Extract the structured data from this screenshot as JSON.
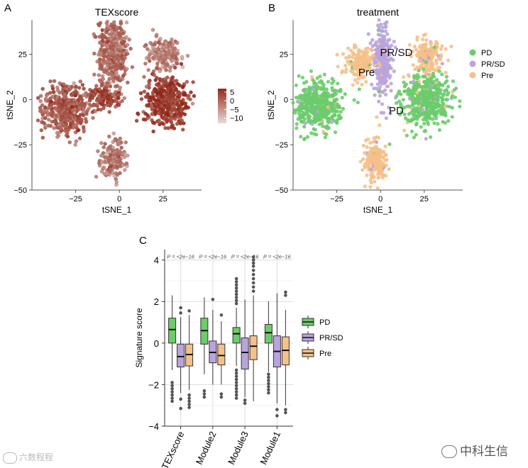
{
  "panel_letters": [
    "A",
    "B",
    "C"
  ],
  "chart_data": [
    {
      "type": "scatter",
      "title": "TEXscore",
      "xlabel": "tSNE_1",
      "ylabel": "tSNE_2",
      "xlim": [
        -50,
        47
      ],
      "ylim": [
        -50,
        44
      ],
      "xticks": [
        -25,
        0,
        25
      ],
      "yticks": [
        -50,
        -25,
        0,
        25
      ],
      "xtick_labels": [
        "−25",
        "0",
        "25"
      ],
      "ytick_labels": [
        "−50",
        "−25",
        "0",
        "25"
      ],
      "color_scale": {
        "min": -13,
        "max": 7,
        "ticks": [
          5,
          0,
          -5,
          -10
        ],
        "tick_labels": [
          "5",
          "0",
          "−5",
          "−10"
        ],
        "low_color": "#e6dcd8",
        "high_color": "#962818"
      },
      "clusters": [
        {
          "name": "upper-center",
          "cx": -4,
          "cy": 25,
          "sx": 5.5,
          "sy": 13,
          "mean_score": -1
        },
        {
          "name": "upper-right",
          "cx": 26,
          "cy": 25,
          "sx": 6,
          "sy": 6,
          "mean_score": -3.5
        },
        {
          "name": "left-arc",
          "cx": -30,
          "cy": -5,
          "sx": 9,
          "sy": 9,
          "mean_score": 1
        },
        {
          "name": "mid-band",
          "cx": -8,
          "cy": 1,
          "sx": 6,
          "sy": 3.5,
          "mean_score": 3
        },
        {
          "name": "right-large",
          "cx": 27,
          "cy": 0,
          "sx": 8.5,
          "sy": 9,
          "mean_score": 4.5
        },
        {
          "name": "bottom",
          "cx": -3,
          "cy": -33,
          "sx": 4.5,
          "sy": 7.5,
          "mean_score": -2.5
        }
      ]
    },
    {
      "type": "scatter",
      "title": "treatment",
      "xlabel": "tSNE_1",
      "ylabel": "tSNE_2",
      "xlim": [
        -50,
        47
      ],
      "ylim": [
        -50,
        44
      ],
      "xticks": [
        -25,
        0,
        25
      ],
      "yticks": [
        -50,
        -25,
        0,
        25
      ],
      "xtick_labels": [
        "−25",
        "0",
        "25"
      ],
      "ytick_labels": [
        "−50",
        "−25",
        "0",
        "25"
      ],
      "legend": [
        {
          "name": "PD",
          "color": "#6ccc6b"
        },
        {
          "name": "PR/SD",
          "color": "#b9a4dd"
        },
        {
          "name": "Pre",
          "color": "#f6c08a"
        }
      ],
      "annotations": [
        {
          "text": "PR/SD",
          "x": 9,
          "y": 24
        },
        {
          "text": "Pre",
          "x": -8,
          "y": 13
        },
        {
          "text": "PD",
          "x": 9,
          "y": -8
        }
      ],
      "clusters": [
        {
          "name": "upper-center",
          "cx": 1,
          "cy": 20,
          "sx": 3.5,
          "sy": 13,
          "group": "PR/SD"
        },
        {
          "name": "upper-left-pre",
          "cx": -12,
          "cy": 20,
          "sx": 5,
          "sy": 6,
          "group": "Pre"
        },
        {
          "name": "upper-right",
          "cx": 27,
          "cy": 24,
          "sx": 6,
          "sy": 6,
          "group": "Pre"
        },
        {
          "name": "left-arc",
          "cx": -35,
          "cy": -4,
          "sx": 9,
          "sy": 9,
          "group": "PD"
        },
        {
          "name": "right-large",
          "cx": 27,
          "cy": 0,
          "sx": 9,
          "sy": 9,
          "group": "PD"
        },
        {
          "name": "bottom",
          "cx": -3,
          "cy": -34,
          "sx": 4.5,
          "sy": 8,
          "group": "Pre"
        }
      ]
    },
    {
      "type": "box",
      "title": "",
      "xlabel": "",
      "ylabel": "Signature score",
      "ylim": [
        -4,
        4.5
      ],
      "yticks": [
        -4,
        -2,
        0,
        2,
        4
      ],
      "ytick_labels": [
        "−4",
        "−2",
        "0",
        "2",
        "4"
      ],
      "categories": [
        "TEXscore",
        "Module2",
        "Module3",
        "Module1"
      ],
      "pvalues": [
        "P = <2e−16",
        "P = <2e−16",
        "P = <2e−16",
        "P = <2e−16"
      ],
      "legend": [
        {
          "name": "PD",
          "color": "#6ccc6b"
        },
        {
          "name": "PR/SD",
          "color": "#b9a4dd"
        },
        {
          "name": "Pre",
          "color": "#f6c08a"
        }
      ],
      "series": [
        {
          "name": "PD",
          "stats": [
            {
              "low": -1.3,
              "q1": 0.0,
              "median": 0.65,
              "q3": 1.2,
              "high": 2.3,
              "outliers": [
                -1.9,
                -2.05,
                -2.2,
                -2.35,
                -2.5,
                -2.65,
                -2.8
              ]
            },
            {
              "low": -1.5,
              "q1": -0.05,
              "median": 0.6,
              "q3": 1.2,
              "high": 2.2,
              "outliers": [
                -2.3,
                -2.45,
                -2.6
              ]
            },
            {
              "low": -1.1,
              "q1": 0.0,
              "median": 0.45,
              "q3": 0.75,
              "high": 1.7,
              "outliers": [
                1.9,
                2.05,
                2.2,
                2.35,
                2.5,
                2.65,
                2.8,
                2.95,
                3.1,
                -1.3,
                -1.45,
                -1.6,
                -1.75,
                -1.9,
                -2.05,
                -2.2,
                -2.35,
                -2.5,
                -2.65
              ]
            },
            {
              "low": -1.4,
              "q1": 0.0,
              "median": 0.5,
              "q3": 0.9,
              "high": 2.0,
              "outliers": [
                -1.5,
                -1.65,
                -1.8,
                -1.95,
                -2.1,
                -2.25,
                -2.4
              ]
            }
          ]
        },
        {
          "name": "PR/SD",
          "stats": [
            {
              "low": -2.4,
              "q1": -1.15,
              "median": -0.65,
              "q3": -0.05,
              "high": 1.25,
              "outliers": [
                1.45,
                1.7,
                -2.7,
                -3.15
              ]
            },
            {
              "low": -2.0,
              "q1": -0.95,
              "median": -0.45,
              "q3": 0.1,
              "high": 1.6,
              "outliers": [
                2.1
              ]
            },
            {
              "low": -2.6,
              "q1": -1.25,
              "median": -0.45,
              "q3": 0.25,
              "high": 2.1,
              "outliers": [
                -2.75,
                -2.9
              ]
            },
            {
              "low": -2.9,
              "q1": -1.15,
              "median": -0.4,
              "q3": 0.35,
              "high": 2.4,
              "outliers": [
                -3.2,
                -3.5
              ]
            }
          ]
        },
        {
          "name": "Pre",
          "stats": [
            {
              "low": -2.25,
              "q1": -1.1,
              "median": -0.55,
              "q3": -0.05,
              "high": 1.35,
              "outliers": [
                1.55,
                -2.5,
                -2.65,
                -2.8,
                -2.95,
                -3.1
              ]
            },
            {
              "low": -2.0,
              "q1": -1.05,
              "median": -0.6,
              "q3": -0.05,
              "high": 1.05,
              "outliers": [
                1.35,
                -2.45,
                -2.6
              ]
            },
            {
              "low": -2.8,
              "q1": -0.8,
              "median": -0.15,
              "q3": 0.35,
              "high": 2.3,
              "outliers": [
                2.5,
                2.7,
                2.9,
                3.1,
                3.3,
                3.5,
                3.7,
                3.85,
                4.0,
                4.15
              ]
            },
            {
              "low": -3.0,
              "q1": -1.05,
              "median": -0.35,
              "q3": 0.3,
              "high": 1.6,
              "outliers": [
                2.3,
                2.45,
                -3.2,
                -3.35
              ]
            }
          ]
        }
      ]
    }
  ],
  "watermarks": {
    "left": "六数程程",
    "right": "中科生信",
    "left_icon": "kc-logo-icon",
    "right_icon": "wechat-icon"
  }
}
